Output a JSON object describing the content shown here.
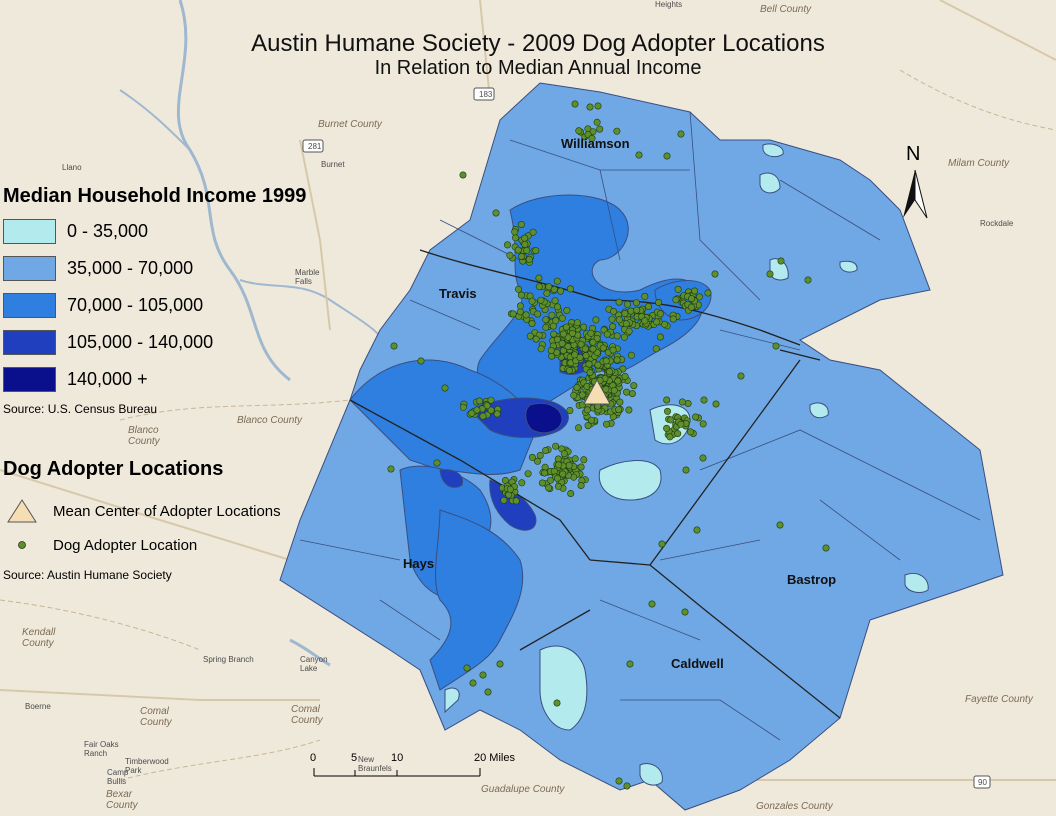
{
  "title": "Austin Humane Society - 2009 Dog Adopter Locations",
  "subtitle": "In Relation to Median Annual Income",
  "income_legend": {
    "heading": "Median Household Income 1999",
    "classes": [
      {
        "label": "0 - 35,000",
        "color": "#b2eaed"
      },
      {
        "label": "35,000 - 70,000",
        "color": "#6fa8e4"
      },
      {
        "label": "70,000 - 105,000",
        "color": "#2e7fe0"
      },
      {
        "label": "105,000 - 140,000",
        "color": "#1f3fbf"
      },
      {
        "label": "140,000 +",
        "color": "#0a0f8c"
      }
    ],
    "source": "Source: U.S. Census Bureau"
  },
  "adopter_legend": {
    "heading": "Dog Adopter Locations",
    "mean_center_label": "Mean Center of Adopter Locations",
    "point_label": "Dog Adopter Location",
    "source": "Source: Austin Humane Society",
    "point_color": "#5e8f2c",
    "mean_center_color": "#f5deb3"
  },
  "counties": {
    "williamson": "Williamson",
    "travis": "Travis",
    "hays": "Hays",
    "bastrop": "Bastrop",
    "caldwell": "Caldwell"
  },
  "basemap_labels": {
    "burnet_county": "Burnet County",
    "milam_county": "Milam County",
    "bell_county": "Bell County",
    "blanco_county": "Blanco County",
    "kendall_county": "Kendall County",
    "comal_county_west": "Comal County",
    "comal_county_east": "Comal County",
    "bexar_county": "Bexar County",
    "guadalupe_county": "Guadalupe County",
    "fayette_county": "Fayette County",
    "gonzales_county": "Gonzales County",
    "blanco_partial": "Blanco County"
  },
  "towns": {
    "llano": "Llano",
    "burnet": "Burnet",
    "marble_falls": "Marble Falls",
    "rockdale": "Rockdale",
    "spring_branch": "Spring Branch",
    "canyon_lake": "Canyon Lake",
    "boerne": "Boerne",
    "fair_oaks_ranch": "Fair Oaks Ranch",
    "timberwood_park": "Timberwood Park",
    "camp_bullis": "Camp Bullis",
    "new_braunfels": "New Braunfels",
    "heights": "Heights"
  },
  "highways": {
    "hwy_183": "183",
    "hwy_281": "281",
    "hwy_90": "90"
  },
  "north_arrow": "N",
  "scale_bar": {
    "ticks": [
      "0",
      "5",
      "10",
      "20 Miles"
    ]
  },
  "mean_center": {
    "lon": -97.72,
    "lat": 30.3
  },
  "adopter_points": {
    "count_visible": "approx. 600",
    "note_color": "#5e8f2c"
  },
  "colors": {
    "basemap": "#efe9dc",
    "county_border": "#222222",
    "tract_border": "#3a4e80"
  }
}
